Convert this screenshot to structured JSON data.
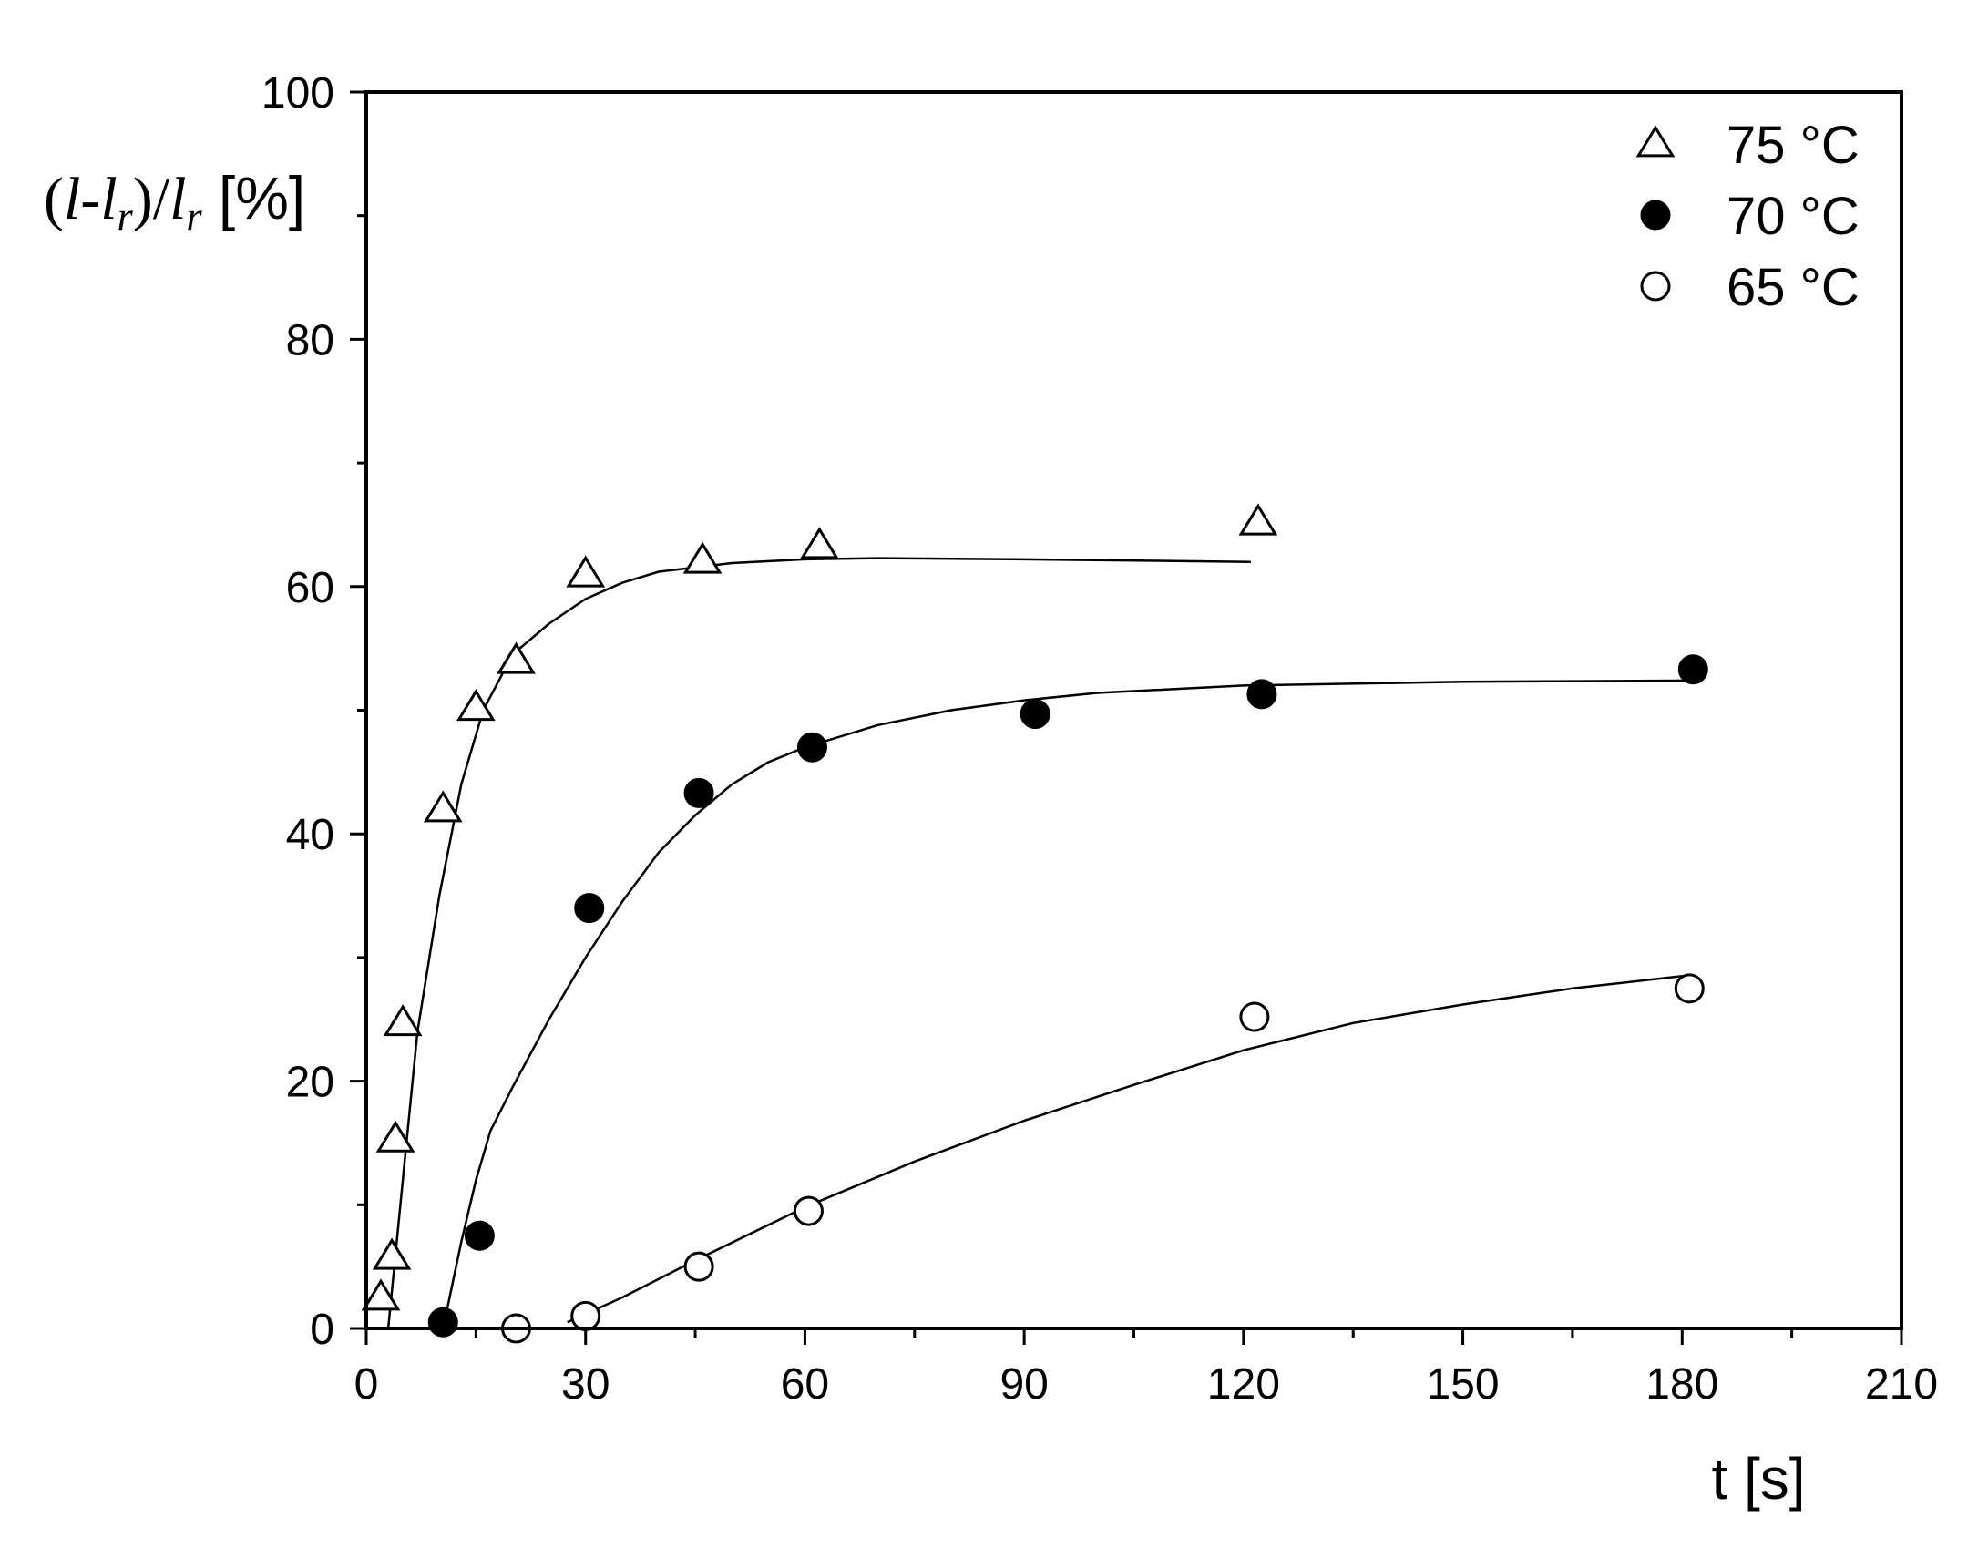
{
  "chart_data": {
    "type": "scatter",
    "title": "",
    "xlabel": "t [s]",
    "ylabel": {
      "parts": [
        "(",
        "l",
        "-",
        "l",
        "r",
        ")/",
        "l",
        "r",
        " [%]"
      ]
    },
    "xlim": [
      0,
      210
    ],
    "ylim": [
      0,
      100
    ],
    "x_ticks": [
      0,
      30,
      60,
      90,
      120,
      150,
      180,
      210
    ],
    "x_tick_labels": [
      "0",
      "30",
      "60",
      "90",
      "120",
      "150",
      "180",
      "210"
    ],
    "y_ticks": [
      0,
      20,
      40,
      60,
      80,
      100
    ],
    "y_tick_labels": [
      "0",
      "20",
      "40",
      "60",
      "80",
      "100"
    ],
    "grid": false,
    "legend_position": "top-right",
    "series": [
      {
        "name": "75 °C",
        "marker": "triangle-open",
        "points": [
          [
            2,
            2.5
          ],
          [
            3.5,
            5.8
          ],
          [
            4,
            15.3
          ],
          [
            5,
            24.7
          ],
          [
            10.5,
            42
          ],
          [
            15,
            50.2
          ],
          [
            20.5,
            54
          ],
          [
            30,
            61
          ],
          [
            46,
            62.1
          ],
          [
            62,
            63.3
          ],
          [
            122,
            65.2
          ]
        ],
        "fit": [
          [
            3,
            0
          ],
          [
            5,
            12
          ],
          [
            7,
            24
          ],
          [
            10,
            35
          ],
          [
            13,
            44
          ],
          [
            16,
            50
          ],
          [
            20,
            54.5
          ],
          [
            25,
            57
          ],
          [
            30,
            59
          ],
          [
            35,
            60.3
          ],
          [
            40,
            61.2
          ],
          [
            50,
            61.9
          ],
          [
            60,
            62.2
          ],
          [
            70,
            62.3
          ],
          [
            90,
            62.2
          ],
          [
            121,
            62
          ]
        ]
      },
      {
        "name": "70 °C",
        "marker": "circle-filled",
        "points": [
          [
            10.5,
            0.5
          ],
          [
            15.5,
            7.5
          ],
          [
            30.5,
            34
          ],
          [
            45.5,
            43.3
          ],
          [
            61,
            47
          ],
          [
            91.5,
            49.7
          ],
          [
            122.5,
            51.3
          ],
          [
            181.5,
            53.3
          ]
        ],
        "fit": [
          [
            10.5,
            0
          ],
          [
            13,
            7
          ],
          [
            15,
            12
          ],
          [
            17,
            16
          ],
          [
            20,
            19.5
          ],
          [
            25,
            25
          ],
          [
            30,
            30
          ],
          [
            35,
            34.5
          ],
          [
            40,
            38.5
          ],
          [
            45,
            41.5
          ],
          [
            50,
            44
          ],
          [
            55,
            45.8
          ],
          [
            60,
            47
          ],
          [
            70,
            48.8
          ],
          [
            80,
            50
          ],
          [
            90,
            50.8
          ],
          [
            100,
            51.4
          ],
          [
            120,
            52
          ],
          [
            150,
            52.3
          ],
          [
            181,
            52.4
          ]
        ]
      },
      {
        "name": "65 °C",
        "marker": "circle-open",
        "points": [
          [
            20.5,
            0
          ],
          [
            30,
            1
          ],
          [
            45.5,
            5
          ],
          [
            60.5,
            9.5
          ],
          [
            121.5,
            25.2
          ],
          [
            181,
            27.5
          ]
        ],
        "fit": [
          [
            27.5,
            0.5
          ],
          [
            35,
            2.5
          ],
          [
            45,
            5.5
          ],
          [
            60,
            9.8
          ],
          [
            75,
            13.5
          ],
          [
            90,
            16.8
          ],
          [
            105,
            19.7
          ],
          [
            120,
            22.5
          ],
          [
            135,
            24.7
          ],
          [
            150,
            26.2
          ],
          [
            165,
            27.5
          ],
          [
            180,
            28.5
          ]
        ]
      }
    ]
  }
}
